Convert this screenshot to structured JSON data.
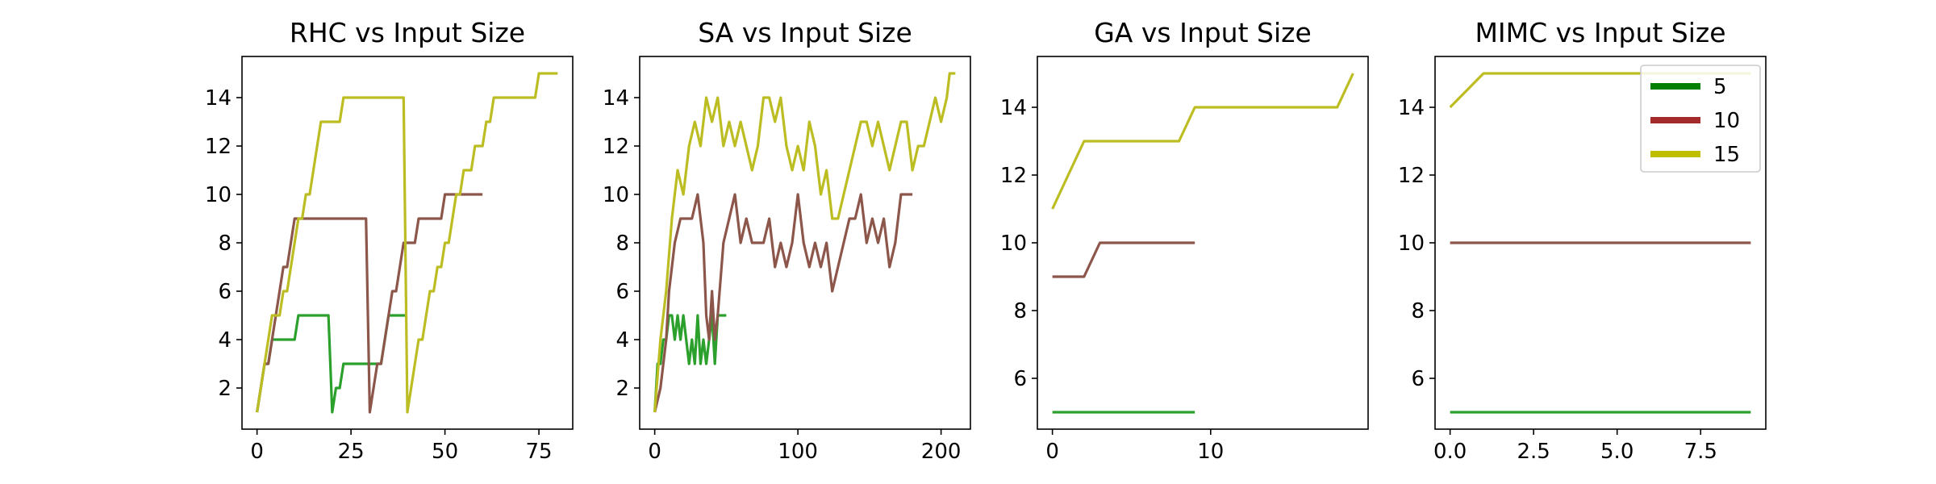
{
  "chart_data": [
    {
      "type": "line",
      "title": "RHC vs Input Size",
      "xlim": [
        -4,
        84
      ],
      "ylim": [
        0.3,
        15.7
      ],
      "xticks": [
        0,
        25,
        50,
        75
      ],
      "yticks": [
        2,
        4,
        6,
        8,
        10,
        12,
        14
      ],
      "xtick_labels": [
        "0",
        "25",
        "50",
        "75"
      ],
      "ytick_labels": [
        "2",
        "4",
        "6",
        "8",
        "10",
        "12",
        "14"
      ],
      "series": [
        {
          "color": "#2ca02c",
          "x": [
            0,
            1,
            2,
            3,
            4,
            5,
            6,
            7,
            8,
            9,
            10,
            11,
            12,
            13,
            14,
            15,
            16,
            17,
            18,
            19,
            20,
            21,
            22,
            23,
            24,
            25,
            26,
            27,
            28,
            29,
            30,
            31,
            32,
            33,
            34,
            35,
            36,
            37,
            38,
            39,
            40
          ],
          "y": [
            1,
            2,
            3,
            3,
            4,
            4,
            4,
            4,
            4,
            4,
            4,
            5,
            5,
            5,
            5,
            5,
            5,
            5,
            5,
            5,
            1,
            2,
            2,
            3,
            3,
            3,
            3,
            3,
            3,
            3,
            3,
            3,
            3,
            3,
            4,
            5,
            5,
            5,
            5,
            5,
            5
          ]
        },
        {
          "color": "#8c564b",
          "x": [
            0,
            1,
            2,
            3,
            4,
            5,
            6,
            7,
            8,
            9,
            10,
            11,
            12,
            13,
            14,
            15,
            16,
            17,
            18,
            19,
            20,
            21,
            22,
            23,
            24,
            25,
            26,
            27,
            28,
            29,
            30,
            31,
            32,
            33,
            34,
            35,
            36,
            37,
            38,
            39,
            40,
            41,
            42,
            43,
            44,
            45,
            46,
            47,
            48,
            49,
            50,
            51,
            52,
            53,
            54,
            55,
            56,
            57,
            58,
            59,
            60
          ],
          "y": [
            1,
            2,
            3,
            3,
            4,
            5,
            6,
            7,
            7,
            8,
            9,
            9,
            9,
            9,
            9,
            9,
            9,
            9,
            9,
            9,
            9,
            9,
            9,
            9,
            9,
            9,
            9,
            9,
            9,
            9,
            1,
            2,
            3,
            3,
            4,
            5,
            6,
            6,
            7,
            8,
            8,
            8,
            8,
            9,
            9,
            9,
            9,
            9,
            9,
            9,
            10,
            10,
            10,
            10,
            10,
            10,
            10,
            10,
            10,
            10,
            10
          ]
        },
        {
          "color": "#bcbd22",
          "x": [
            0,
            1,
            2,
            3,
            4,
            5,
            6,
            7,
            8,
            9,
            10,
            11,
            12,
            13,
            14,
            15,
            16,
            17,
            18,
            19,
            20,
            21,
            22,
            23,
            24,
            25,
            26,
            27,
            28,
            29,
            30,
            31,
            32,
            33,
            34,
            35,
            36,
            37,
            38,
            39,
            40,
            41,
            42,
            43,
            44,
            45,
            46,
            47,
            48,
            49,
            50,
            51,
            52,
            53,
            54,
            55,
            56,
            57,
            58,
            59,
            60,
            61,
            62,
            63,
            64,
            65,
            66,
            67,
            68,
            69,
            70,
            71,
            72,
            73,
            74,
            75,
            76,
            77,
            78,
            79,
            80
          ],
          "y": [
            1,
            2,
            3,
            4,
            5,
            5,
            5,
            6,
            6,
            7,
            8,
            9,
            9,
            10,
            10,
            11,
            12,
            13,
            13,
            13,
            13,
            13,
            13,
            14,
            14,
            14,
            14,
            14,
            14,
            14,
            14,
            14,
            14,
            14,
            14,
            14,
            14,
            14,
            14,
            14,
            1,
            2,
            3,
            4,
            4,
            5,
            6,
            6,
            7,
            7,
            8,
            8,
            9,
            10,
            10,
            11,
            11,
            11,
            12,
            12,
            12,
            13,
            13,
            14,
            14,
            14,
            14,
            14,
            14,
            14,
            14,
            14,
            14,
            14,
            14,
            15,
            15,
            15,
            15,
            15,
            15
          ]
        }
      ]
    },
    {
      "type": "line",
      "title": "SA vs Input Size",
      "xlim": [
        -10.5,
        220.5
      ],
      "ylim": [
        0.3,
        15.7
      ],
      "xticks": [
        0,
        100,
        200
      ],
      "yticks": [
        2,
        4,
        6,
        8,
        10,
        12,
        14
      ],
      "xtick_labels": [
        "0",
        "100",
        "200"
      ],
      "ytick_labels": [
        "2",
        "4",
        "6",
        "8",
        "10",
        "12",
        "14"
      ],
      "series": [
        {
          "color": "#2ca02c",
          "x": [
            0,
            2,
            4,
            6,
            8,
            10,
            12,
            14,
            16,
            18,
            20,
            22,
            24,
            26,
            28,
            30,
            32,
            34,
            36,
            38,
            40,
            42,
            44,
            46,
            48,
            50
          ],
          "y": [
            1,
            3,
            3,
            4,
            4,
            5,
            5,
            4,
            5,
            4,
            5,
            4,
            3,
            4,
            3,
            5,
            3,
            4,
            3,
            4,
            5,
            3,
            5,
            5,
            5,
            5
          ]
        },
        {
          "color": "#8c564b",
          "x": [
            0,
            4,
            8,
            10,
            14,
            18,
            22,
            26,
            30,
            32,
            34,
            36,
            38,
            40,
            42,
            44,
            48,
            52,
            56,
            60,
            64,
            68,
            72,
            76,
            80,
            84,
            88,
            92,
            96,
            100,
            104,
            108,
            112,
            116,
            120,
            124,
            128,
            132,
            136,
            140,
            144,
            148,
            152,
            156,
            160,
            164,
            168,
            172,
            176,
            180
          ],
          "y": [
            1,
            2,
            4,
            6,
            8,
            9,
            9,
            9,
            10,
            9,
            8,
            5,
            4,
            6,
            4,
            5,
            8,
            9,
            10,
            8,
            9,
            8,
            8,
            8,
            9,
            7,
            8,
            7,
            8,
            10,
            8,
            7,
            8,
            7,
            8,
            6,
            7,
            8,
            9,
            9,
            10,
            8,
            9,
            8,
            9,
            7,
            8,
            10,
            10,
            10
          ]
        },
        {
          "color": "#bcbd22",
          "x": [
            0,
            4,
            8,
            12,
            16,
            20,
            24,
            28,
            32,
            36,
            40,
            44,
            48,
            52,
            56,
            60,
            64,
            68,
            72,
            76,
            80,
            84,
            88,
            92,
            96,
            100,
            104,
            108,
            112,
            116,
            120,
            124,
            128,
            132,
            136,
            140,
            144,
            148,
            152,
            156,
            160,
            164,
            168,
            172,
            176,
            180,
            184,
            188,
            192,
            196,
            200,
            204,
            206,
            208,
            210
          ],
          "y": [
            1,
            4,
            6,
            9,
            11,
            10,
            12,
            13,
            12,
            14,
            13,
            14,
            12,
            13,
            12,
            13,
            12,
            11,
            12,
            14,
            14,
            13,
            14,
            12,
            11,
            12,
            11,
            13,
            12,
            10,
            11,
            9,
            9,
            10,
            11,
            12,
            13,
            13,
            12,
            13,
            12,
            11,
            12,
            13,
            13,
            11,
            12,
            12,
            13,
            14,
            13,
            14,
            15,
            15,
            15
          ]
        }
      ]
    },
    {
      "type": "line",
      "title": "GA vs Input Size",
      "xlim": [
        -0.95,
        19.95
      ],
      "ylim": [
        4.5,
        15.5
      ],
      "xticks": [
        0,
        10
      ],
      "yticks": [
        6,
        8,
        10,
        12,
        14
      ],
      "xtick_labels": [
        "0",
        "10"
      ],
      "ytick_labels": [
        "6",
        "8",
        "10",
        "12",
        "14"
      ],
      "series": [
        {
          "color": "#2ca02c",
          "x": [
            0,
            1,
            2,
            3,
            4,
            5,
            6,
            7,
            8,
            9
          ],
          "y": [
            5,
            5,
            5,
            5,
            5,
            5,
            5,
            5,
            5,
            5
          ]
        },
        {
          "color": "#8c564b",
          "x": [
            0,
            1,
            2,
            3,
            4,
            5,
            6,
            7,
            8,
            9
          ],
          "y": [
            9,
            9,
            9,
            10,
            10,
            10,
            10,
            10,
            10,
            10
          ]
        },
        {
          "color": "#bcbd22",
          "x": [
            0,
            1,
            2,
            3,
            4,
            5,
            6,
            7,
            8,
            9,
            10,
            11,
            12,
            13,
            14,
            15,
            16,
            17,
            18,
            19
          ],
          "y": [
            11,
            12,
            13,
            13,
            13,
            13,
            13,
            13,
            13,
            14,
            14,
            14,
            14,
            14,
            14,
            14,
            14,
            14,
            14,
            15
          ]
        }
      ]
    },
    {
      "type": "line",
      "title": "MIMC vs Input Size",
      "xlim": [
        -0.45,
        9.45
      ],
      "ylim": [
        4.5,
        15.5
      ],
      "xticks": [
        0.0,
        2.5,
        5.0,
        7.5
      ],
      "yticks": [
        6,
        8,
        10,
        12,
        14
      ],
      "xtick_labels": [
        "0.0",
        "2.5",
        "5.0",
        "7.5"
      ],
      "ytick_labels": [
        "6",
        "8",
        "10",
        "12",
        "14"
      ],
      "series": [
        {
          "name": "5",
          "color": "#2ca02c",
          "x": [
            0,
            1,
            2,
            3,
            4,
            5,
            6,
            7,
            8,
            9
          ],
          "y": [
            5,
            5,
            5,
            5,
            5,
            5,
            5,
            5,
            5,
            5
          ]
        },
        {
          "name": "10",
          "color": "#8c564b",
          "x": [
            0,
            1,
            2,
            3,
            4,
            5,
            6,
            7,
            8,
            9
          ],
          "y": [
            10,
            10,
            10,
            10,
            10,
            10,
            10,
            10,
            10,
            10
          ]
        },
        {
          "name": "15",
          "color": "#bcbd22",
          "x": [
            0,
            1,
            2,
            3,
            4,
            5,
            6,
            7,
            8,
            9
          ],
          "y": [
            14,
            15,
            15,
            15,
            15,
            15,
            15,
            15,
            15,
            15
          ]
        }
      ],
      "legend": {
        "placement": "top-right",
        "entries": [
          {
            "label": "5",
            "color": "#008000"
          },
          {
            "label": "10",
            "color": "#a52a2a"
          },
          {
            "label": "15",
            "color": "#bfbf00"
          }
        ]
      }
    }
  ]
}
